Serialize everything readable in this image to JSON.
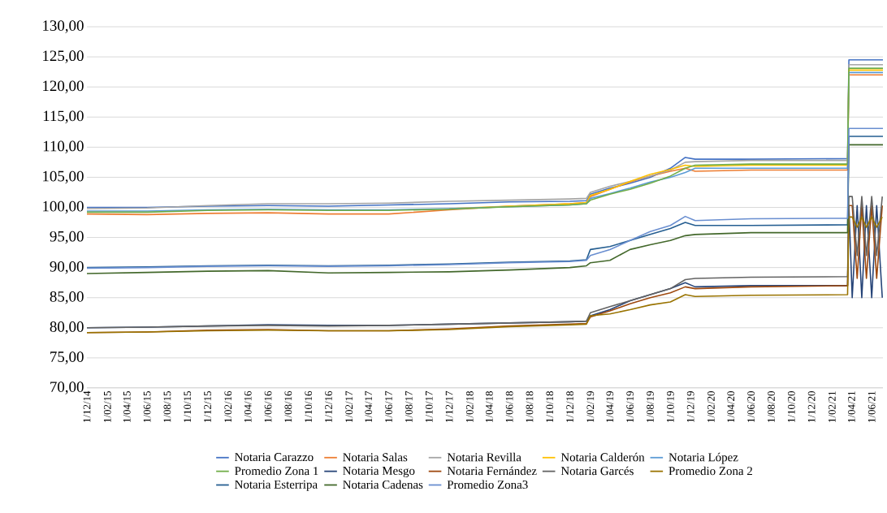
{
  "chart_data": {
    "type": "line",
    "xlim": [
      "2014-12-01",
      "2021-07-05"
    ],
    "ylim": [
      70,
      130
    ],
    "xticks": [
      {
        "value": "2014-12-01",
        "label": "1/12/14"
      },
      {
        "value": "2015-02-01",
        "label": "1/02/15"
      },
      {
        "value": "2015-04-01",
        "label": "1/04/15"
      },
      {
        "value": "2015-06-01",
        "label": "1/06/15"
      },
      {
        "value": "2015-08-01",
        "label": "1/08/15"
      },
      {
        "value": "2015-10-01",
        "label": "1/10/15"
      },
      {
        "value": "2015-12-01",
        "label": "1/12/15"
      },
      {
        "value": "2016-02-01",
        "label": "1/02/16"
      },
      {
        "value": "2016-04-01",
        "label": "1/04/16"
      },
      {
        "value": "2016-06-01",
        "label": "1/06/16"
      },
      {
        "value": "2016-08-01",
        "label": "1/08/16"
      },
      {
        "value": "2016-10-01",
        "label": "1/10/16"
      },
      {
        "value": "2016-12-01",
        "label": "1/12/16"
      },
      {
        "value": "2017-02-01",
        "label": "1/02/17"
      },
      {
        "value": "2017-04-01",
        "label": "1/04/17"
      },
      {
        "value": "2017-06-01",
        "label": "1/06/17"
      },
      {
        "value": "2017-08-01",
        "label": "1/08/17"
      },
      {
        "value": "2017-10-01",
        "label": "1/10/17"
      },
      {
        "value": "2017-12-01",
        "label": "1/12/17"
      },
      {
        "value": "2018-02-01",
        "label": "1/02/18"
      },
      {
        "value": "2018-04-01",
        "label": "1/04/18"
      },
      {
        "value": "2018-06-01",
        "label": "1/06/18"
      },
      {
        "value": "2018-08-01",
        "label": "1/08/18"
      },
      {
        "value": "2018-10-01",
        "label": "1/10/18"
      },
      {
        "value": "2018-12-01",
        "label": "1/12/18"
      },
      {
        "value": "2019-02-01",
        "label": "1/02/19"
      },
      {
        "value": "2019-04-01",
        "label": "1/04/19"
      },
      {
        "value": "2019-06-01",
        "label": "1/06/19"
      },
      {
        "value": "2019-08-01",
        "label": "1/08/19"
      },
      {
        "value": "2019-10-01",
        "label": "1/10/19"
      },
      {
        "value": "2019-12-01",
        "label": "1/12/19"
      },
      {
        "value": "2020-02-01",
        "label": "1/02/20"
      },
      {
        "value": "2020-04-01",
        "label": "1/04/20"
      },
      {
        "value": "2020-06-01",
        "label": "1/06/20"
      },
      {
        "value": "2020-08-01",
        "label": "1/08/20"
      },
      {
        "value": "2020-10-01",
        "label": "1/10/20"
      },
      {
        "value": "2020-12-01",
        "label": "1/12/20"
      },
      {
        "value": "2021-02-01",
        "label": "1/02/21"
      },
      {
        "value": "2021-04-01",
        "label": "1/04/21"
      },
      {
        "value": "2021-06-01",
        "label": "1/06/21"
      }
    ],
    "yticks": [
      {
        "value": 70,
        "label": "70,00"
      },
      {
        "value": 75,
        "label": "75,00"
      },
      {
        "value": 80,
        "label": "80,00"
      },
      {
        "value": 85,
        "label": "85,00"
      },
      {
        "value": 90,
        "label": "90,00"
      },
      {
        "value": 95,
        "label": "95,00"
      },
      {
        "value": 100,
        "label": "100,00"
      },
      {
        "value": 105,
        "label": "105,00"
      },
      {
        "value": 110,
        "label": "110,00"
      },
      {
        "value": 115,
        "label": "115,00"
      },
      {
        "value": 120,
        "label": "120,00"
      },
      {
        "value": 125,
        "label": "125,00"
      },
      {
        "value": 130,
        "label": "130,00"
      }
    ],
    "grid": "y",
    "legend": "bottom",
    "marker": "none",
    "line_style": "solid",
    "series": [
      {
        "name": "Notaria Carazzo",
        "color": "#4472c4",
        "x": [
          "2014-12-01",
          "2015-06-01",
          "2015-12-01",
          "2016-06-01",
          "2016-12-01",
          "2017-06-01",
          "2017-12-01",
          "2018-06-01",
          "2018-12-01",
          "2019-01-20",
          "2019-02-01",
          "2019-04-01",
          "2019-06-01",
          "2019-08-01",
          "2019-10-01",
          "2019-11-15",
          "2019-12-15",
          "2020-06-01",
          "2021-03-20",
          "2021-03-24",
          "2021-07-05"
        ],
        "values": [
          100.0,
          100.0,
          100.2,
          100.3,
          100.2,
          100.4,
          100.6,
          100.9,
          101.0,
          101.1,
          102.2,
          103.2,
          104.0,
          105.0,
          106.5,
          108.3,
          108.0,
          108.0,
          108.1,
          124.5,
          124.5
        ]
      },
      {
        "name": "Notaria Salas",
        "color": "#ed7d31",
        "x": [
          "2014-12-01",
          "2015-06-01",
          "2015-12-01",
          "2016-06-01",
          "2016-12-01",
          "2017-06-01",
          "2017-12-01",
          "2018-06-01",
          "2018-12-01",
          "2019-01-20",
          "2019-02-01",
          "2019-04-01",
          "2019-06-01",
          "2019-08-01",
          "2019-10-01",
          "2019-11-15",
          "2019-12-15",
          "2020-06-01",
          "2021-03-20",
          "2021-03-24",
          "2021-07-05"
        ],
        "values": [
          98.9,
          98.8,
          99.0,
          99.1,
          98.9,
          98.9,
          99.6,
          100.2,
          100.6,
          100.8,
          101.8,
          103.0,
          104.2,
          105.2,
          106.0,
          106.5,
          106.0,
          106.2,
          106.2,
          122.0,
          122.0
        ]
      },
      {
        "name": "Notaria Revilla",
        "color": "#a5a5a5",
        "x": [
          "2014-12-01",
          "2015-06-01",
          "2015-12-01",
          "2016-06-01",
          "2016-12-01",
          "2017-06-01",
          "2017-12-01",
          "2018-06-01",
          "2018-12-01",
          "2019-01-20",
          "2019-02-01",
          "2019-04-01",
          "2019-06-01",
          "2019-08-01",
          "2019-10-01",
          "2019-11-15",
          "2019-12-15",
          "2020-06-01",
          "2021-03-20",
          "2021-03-24",
          "2021-07-05"
        ],
        "values": [
          99.8,
          99.9,
          100.3,
          100.6,
          100.6,
          100.7,
          101.0,
          101.2,
          101.4,
          101.5,
          102.5,
          103.5,
          104.3,
          105.2,
          106.2,
          107.5,
          107.6,
          107.8,
          107.8,
          123.7,
          123.7
        ]
      },
      {
        "name": "Notaria Calderón",
        "color": "#ffc000",
        "x": [
          "2017-12-01",
          "2018-06-01",
          "2018-12-01",
          "2019-01-20",
          "2019-02-01",
          "2019-04-01",
          "2019-06-01",
          "2019-08-01",
          "2019-10-01",
          "2019-11-15",
          "2019-12-15",
          "2020-06-01",
          "2021-03-20",
          "2021-03-24",
          "2021-07-05"
        ],
        "values": [
          99.8,
          100.2,
          100.6,
          100.8,
          102.0,
          103.0,
          104.3,
          105.5,
          106.3,
          107.0,
          106.8,
          107.0,
          107.0,
          122.8,
          122.8
        ]
      },
      {
        "name": "Notaria López",
        "color": "#5b9bd5",
        "x": [
          "2014-12-01",
          "2015-06-01",
          "2015-12-01",
          "2016-06-01",
          "2016-12-01",
          "2017-06-01",
          "2017-12-01",
          "2018-06-01",
          "2018-12-01",
          "2019-01-20",
          "2019-02-01",
          "2019-04-01",
          "2019-06-01",
          "2019-08-01",
          "2019-10-01",
          "2019-11-15",
          "2019-12-15",
          "2020-06-01",
          "2021-03-20",
          "2021-03-24",
          "2021-07-05"
        ],
        "values": [
          99.4,
          99.4,
          99.6,
          99.7,
          99.6,
          99.6,
          99.8,
          100.1,
          100.4,
          100.6,
          101.5,
          102.3,
          103.2,
          104.2,
          105.0,
          105.8,
          106.5,
          106.5,
          106.5,
          122.4,
          122.4
        ]
      },
      {
        "name": "Promedio Zona 1",
        "color": "#70ad47",
        "x": [
          "2014-12-01",
          "2015-06-01",
          "2015-12-01",
          "2016-06-01",
          "2016-12-01",
          "2017-06-01",
          "2017-12-01",
          "2018-06-01",
          "2018-12-01",
          "2019-01-20",
          "2019-02-01",
          "2019-04-01",
          "2019-06-01",
          "2019-08-01",
          "2019-10-01",
          "2019-11-15",
          "2019-12-15",
          "2020-06-01",
          "2021-03-20",
          "2021-03-24",
          "2021-07-05"
        ],
        "values": [
          99.2,
          99.2,
          99.5,
          99.6,
          99.5,
          99.5,
          99.7,
          100.1,
          100.4,
          100.6,
          101.2,
          102.2,
          103.0,
          104.0,
          105.2,
          106.5,
          107.0,
          107.2,
          107.2,
          123.1,
          123.1
        ]
      },
      {
        "name": "Notaria Mesgo",
        "color": "#264478",
        "x": [
          "2014-12-01",
          "2015-06-01",
          "2015-12-01",
          "2016-06-01",
          "2016-12-01",
          "2017-06-01",
          "2017-12-01",
          "2018-06-01",
          "2018-12-01",
          "2019-01-20",
          "2019-02-01",
          "2019-04-01",
          "2019-06-01",
          "2019-08-01",
          "2019-10-01",
          "2019-11-15",
          "2019-12-15",
          "2020-06-01",
          "2021-03-20",
          "2021-03-24",
          "2021-04-03",
          "2021-04-18",
          "2021-05-02",
          "2021-05-16",
          "2021-06-01",
          "2021-06-16",
          "2021-07-03"
        ],
        "values": [
          80.0,
          80.1,
          80.3,
          80.5,
          80.4,
          80.4,
          80.6,
          80.8,
          81.0,
          81.1,
          82.0,
          83.0,
          84.5,
          85.5,
          86.5,
          87.5,
          86.8,
          87.0,
          87.0,
          100.3,
          85.0,
          100.3,
          85.0,
          100.3,
          85.0,
          100.3,
          85.0
        ]
      },
      {
        "name": "Notaria Fernández",
        "color": "#9e480e",
        "x": [
          "2014-12-01",
          "2015-06-01",
          "2015-12-01",
          "2016-06-01",
          "2016-12-01",
          "2017-06-01",
          "2017-12-01",
          "2018-06-01",
          "2018-12-01",
          "2019-01-20",
          "2019-02-01",
          "2019-04-01",
          "2019-06-01",
          "2019-08-01",
          "2019-10-01",
          "2019-11-15",
          "2019-12-15",
          "2020-06-01",
          "2021-03-20",
          "2021-03-24",
          "2021-04-03",
          "2021-04-18",
          "2021-05-02",
          "2021-05-16",
          "2021-06-01",
          "2021-06-16",
          "2021-07-03"
        ],
        "values": [
          79.2,
          79.3,
          79.6,
          79.7,
          79.5,
          79.5,
          79.8,
          80.3,
          80.6,
          80.7,
          81.8,
          82.8,
          84.0,
          85.0,
          85.8,
          86.8,
          86.5,
          86.8,
          87.0,
          100.3,
          100.3,
          88.2,
          100.3,
          88.2,
          100.3,
          88.2,
          100.3
        ]
      },
      {
        "name": "Notaria Garcés",
        "color": "#636363",
        "x": [
          "2014-12-01",
          "2015-06-01",
          "2015-12-01",
          "2016-06-01",
          "2016-12-01",
          "2017-06-01",
          "2017-12-01",
          "2018-06-01",
          "2018-12-01",
          "2019-01-20",
          "2019-02-01",
          "2019-04-01",
          "2019-06-01",
          "2019-08-01",
          "2019-10-01",
          "2019-11-15",
          "2019-12-15",
          "2020-06-01",
          "2021-03-20",
          "2021-03-24",
          "2021-04-03",
          "2021-04-18",
          "2021-05-02",
          "2021-05-16",
          "2021-06-01",
          "2021-06-16",
          "2021-07-03"
        ],
        "values": [
          80.0,
          80.1,
          80.3,
          80.4,
          80.3,
          80.4,
          80.6,
          80.8,
          81.0,
          81.1,
          82.5,
          83.5,
          84.5,
          85.5,
          86.5,
          88.0,
          88.2,
          88.4,
          88.5,
          101.8,
          101.8,
          92.0,
          101.8,
          92.0,
          101.8,
          92.0,
          101.8
        ]
      },
      {
        "name": "Promedio Zona 2",
        "color": "#997300",
        "x": [
          "2014-12-01",
          "2015-06-01",
          "2015-12-01",
          "2016-06-01",
          "2016-12-01",
          "2017-06-01",
          "2017-12-01",
          "2018-06-01",
          "2018-12-01",
          "2019-01-20",
          "2019-02-01",
          "2019-04-01",
          "2019-06-01",
          "2019-08-01",
          "2019-10-01",
          "2019-11-15",
          "2019-12-15",
          "2020-06-01",
          "2021-03-20",
          "2021-03-24",
          "2021-04-03",
          "2021-04-18",
          "2021-05-02",
          "2021-05-16",
          "2021-06-01",
          "2021-06-16",
          "2021-07-03"
        ],
        "values": [
          79.2,
          79.3,
          79.5,
          79.6,
          79.5,
          79.5,
          79.7,
          80.2,
          80.5,
          80.6,
          82.0,
          82.3,
          83.0,
          83.8,
          84.3,
          85.5,
          85.2,
          85.4,
          85.5,
          98.4,
          98.4,
          96.7,
          98.4,
          96.7,
          98.4,
          96.7,
          98.4
        ]
      },
      {
        "name": "Notaria Esterripa",
        "color": "#255e91",
        "x": [
          "2014-12-01",
          "2015-06-01",
          "2015-12-01",
          "2016-06-01",
          "2016-12-01",
          "2017-06-01",
          "2017-12-01",
          "2018-06-01",
          "2018-12-01",
          "2019-01-20",
          "2019-02-01",
          "2019-04-01",
          "2019-06-01",
          "2019-08-01",
          "2019-10-01",
          "2019-11-15",
          "2019-12-15",
          "2020-06-01",
          "2021-03-20",
          "2021-03-24",
          "2021-07-05"
        ],
        "values": [
          90.0,
          90.1,
          90.3,
          90.4,
          90.3,
          90.4,
          90.6,
          90.9,
          91.1,
          91.3,
          93.0,
          93.5,
          94.5,
          95.5,
          96.5,
          97.5,
          97.0,
          97.0,
          97.1,
          111.8,
          111.8
        ]
      },
      {
        "name": "Notaria Cadenas",
        "color": "#43682b",
        "x": [
          "2014-12-01",
          "2015-06-01",
          "2015-12-01",
          "2016-06-01",
          "2016-12-01",
          "2017-06-01",
          "2017-12-01",
          "2018-06-01",
          "2018-12-01",
          "2019-01-20",
          "2019-02-01",
          "2019-04-01",
          "2019-06-01",
          "2019-08-01",
          "2019-10-01",
          "2019-11-15",
          "2019-12-15",
          "2020-06-01",
          "2021-03-20",
          "2021-03-24",
          "2021-07-05"
        ],
        "values": [
          89.0,
          89.2,
          89.4,
          89.5,
          89.1,
          89.2,
          89.3,
          89.6,
          90.0,
          90.3,
          90.8,
          91.2,
          93.0,
          93.8,
          94.5,
          95.3,
          95.5,
          95.8,
          95.8,
          110.4,
          110.4
        ]
      },
      {
        "name": "Promedio Zona3",
        "color": "#698ed0",
        "x": [
          "2014-12-01",
          "2015-06-01",
          "2015-12-01",
          "2016-06-01",
          "2016-12-01",
          "2017-06-01",
          "2017-12-01",
          "2018-06-01",
          "2018-12-01",
          "2019-01-20",
          "2019-02-01",
          "2019-04-01",
          "2019-06-01",
          "2019-08-01",
          "2019-10-01",
          "2019-11-15",
          "2019-12-15",
          "2020-06-01",
          "2021-03-20",
          "2021-03-24",
          "2021-07-05"
        ],
        "values": [
          89.9,
          90.0,
          90.2,
          90.3,
          90.2,
          90.3,
          90.5,
          90.8,
          91.0,
          91.2,
          92.0,
          93.0,
          94.5,
          96.0,
          97.0,
          98.5,
          97.8,
          98.1,
          98.2,
          113.1,
          113.1
        ]
      }
    ]
  }
}
